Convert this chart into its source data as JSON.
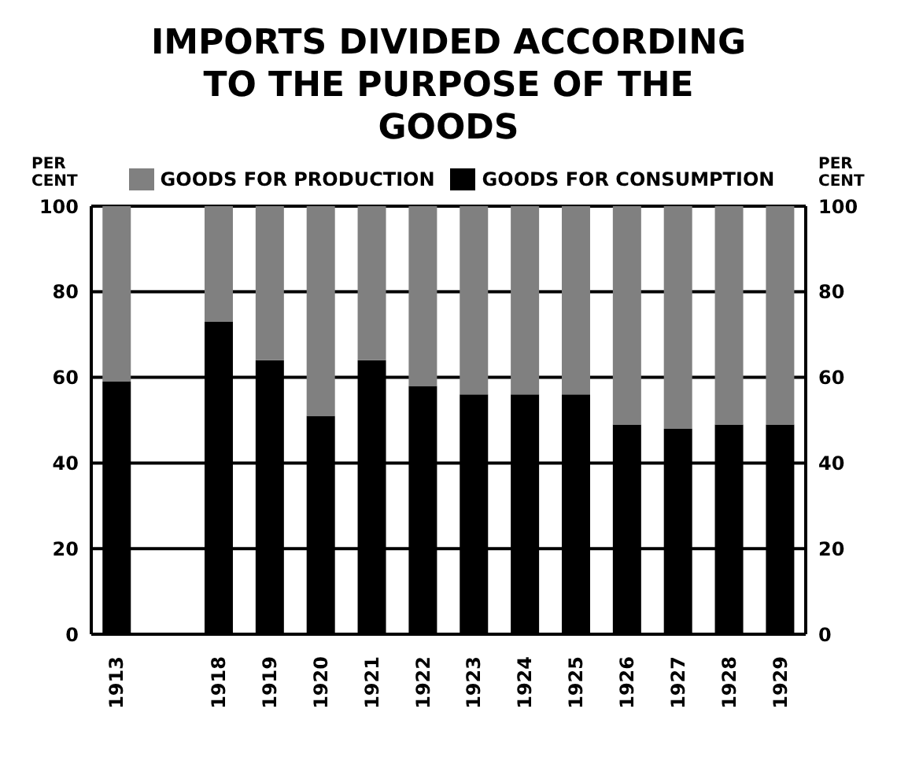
{
  "chart_data": {
    "type": "bar",
    "title": "IMPORTS DIVIDED ACCORDING TO THE PURPOSE OF THE GOODS",
    "ylabel": "PER CENT",
    "y2label": "PER CENT",
    "categories": [
      "1913",
      null,
      "1918",
      "1919",
      "1920",
      "1921",
      "1922",
      "1923",
      "1924",
      "1925",
      "1926",
      "1927",
      "1928",
      "1929"
    ],
    "stacked": true,
    "series": [
      {
        "name": "GOODS FOR CONSUMPTION",
        "color": "#000000",
        "values": [
          59,
          null,
          73,
          64,
          51,
          64,
          58,
          56,
          56,
          56,
          49,
          48,
          49,
          49
        ]
      },
      {
        "name": "GOODS FOR PRODUCTION",
        "color": "#808080",
        "values": [
          41,
          null,
          27,
          36,
          49,
          36,
          42,
          44,
          44,
          44,
          51,
          52,
          51,
          51
        ]
      }
    ],
    "ylim": [
      0,
      100
    ],
    "yticks": [
      0,
      20,
      40,
      60,
      80,
      100
    ],
    "y2lim": [
      0,
      100
    ],
    "y2ticks": [
      0,
      20,
      40,
      60,
      80,
      100
    ],
    "grid": "y",
    "legend": "top"
  }
}
